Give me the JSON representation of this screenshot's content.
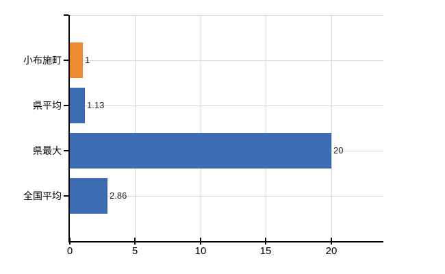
{
  "chart_data": {
    "type": "bar",
    "orientation": "horizontal",
    "title": "",
    "xlabel": "",
    "ylabel": "",
    "categories": [
      "小布施町",
      "県平均",
      "県最大",
      "全国平均"
    ],
    "values": [
      1,
      1.13,
      20,
      2.86
    ],
    "value_labels": [
      "1",
      "1.13",
      "20",
      "2.86"
    ],
    "x_ticks": [
      0,
      5,
      10,
      15,
      20
    ],
    "xlim": [
      0,
      24
    ],
    "grid": true,
    "legend": false,
    "bar_colors": [
      "#ee8a33",
      "#3d6cb2",
      "#3d6cb2",
      "#3d6cb2"
    ],
    "colors": {
      "highlight_bar": "#ee8a33",
      "default_bar": "#3d6cb2",
      "grid": "#d9d9d9",
      "axis": "#000000",
      "category_text": "#000000",
      "value_text": "#222222",
      "background": "#ffffff"
    }
  }
}
